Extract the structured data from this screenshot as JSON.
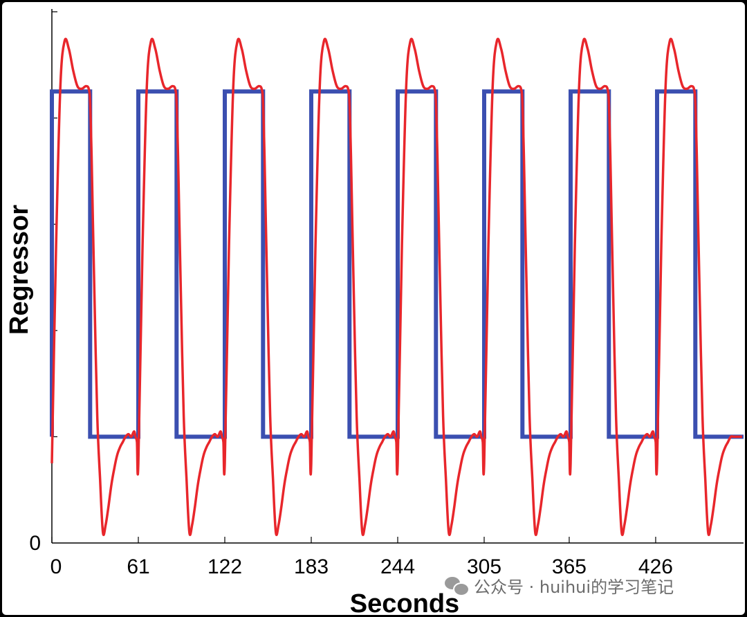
{
  "chart_data": {
    "type": "line",
    "title": "",
    "xlabel": "Seconds",
    "ylabel": "Regressor",
    "x_ticks": [
      "0",
      "61",
      "122",
      "183",
      "244",
      "305",
      "365",
      "426"
    ],
    "x_tick_values": [
      0,
      61,
      122,
      183,
      244,
      305,
      365,
      426
    ],
    "y_ticks": [
      "0"
    ],
    "xlim": [
      0,
      488
    ],
    "ylim": [
      0,
      1
    ],
    "grid": false,
    "block_period_s": 61,
    "series": [
      {
        "color": "#3b4fb0",
        "description": "boxcar stimulus",
        "x": [
          0,
          0,
          27,
          27,
          61,
          61,
          88,
          88,
          122,
          122,
          149,
          149,
          183,
          183,
          210,
          210,
          244,
          244,
          271,
          271,
          305,
          305,
          332,
          332,
          366,
          366,
          393,
          393,
          427,
          427,
          454,
          454,
          488
        ],
        "y": [
          0.2,
          0.85,
          0.85,
          0.2,
          0.2,
          0.85,
          0.85,
          0.2,
          0.2,
          0.85,
          0.85,
          0.2,
          0.2,
          0.85,
          0.85,
          0.2,
          0.2,
          0.85,
          0.85,
          0.2,
          0.2,
          0.85,
          0.85,
          0.2,
          0.2,
          0.85,
          0.85,
          0.2,
          0.2,
          0.85,
          0.85,
          0.2,
          0.2
        ]
      },
      {
        "color": "#e8262b",
        "description": "HRF-convolved response",
        "block_shape_offsets_s": [
          0,
          3,
          6,
          9,
          12,
          15,
          18,
          21,
          24,
          26,
          27,
          28,
          29,
          30,
          32,
          34,
          36,
          38,
          40,
          42,
          44,
          46,
          48,
          50,
          52,
          54,
          56,
          58,
          59,
          60,
          61
        ],
        "block_shape_y": [
          0.15,
          0.56,
          0.86,
          0.945,
          0.93,
          0.89,
          0.86,
          0.855,
          0.86,
          0.855,
          0.83,
          0.73,
          0.6,
          0.47,
          0.24,
          0.12,
          0.02,
          0.035,
          0.07,
          0.11,
          0.14,
          0.165,
          0.18,
          0.19,
          0.2,
          0.205,
          0.2,
          0.21,
          0.2,
          0.19,
          0.15
        ],
        "tail_offsets_s": [
          0,
          3,
          6,
          9,
          12,
          15,
          18,
          21,
          24,
          26,
          27,
          28,
          29,
          30,
          32,
          34,
          36,
          38,
          40,
          42,
          44,
          46,
          48,
          50,
          52,
          54,
          56,
          58,
          60
        ],
        "tail_y": [
          0.15,
          0.56,
          0.86,
          0.945,
          0.93,
          0.89,
          0.86,
          0.855,
          0.86,
          0.855,
          0.83,
          0.73,
          0.6,
          0.47,
          0.24,
          0.12,
          0.02,
          0.035,
          0.07,
          0.11,
          0.14,
          0.165,
          0.18,
          0.19,
          0.2,
          0.2,
          0.2,
          0.2,
          0.2
        ]
      }
    ]
  },
  "watermark": {
    "text": "公众号 · huihui的学习笔记",
    "icon": "wechat-icon"
  }
}
